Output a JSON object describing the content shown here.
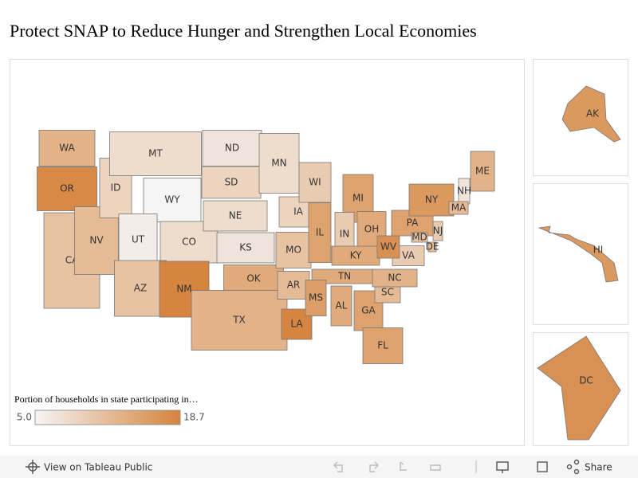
{
  "title": "Protect SNAP to Reduce Hunger and Strengthen Local Economies",
  "map": {
    "type": "choropleth",
    "color_low": "#f5f5f5",
    "color_high": "#d5833c",
    "states": [
      {
        "label": "WA",
        "value": 13
      },
      {
        "label": "OR",
        "value": 18
      },
      {
        "label": "CA",
        "value": 11
      },
      {
        "label": "NV",
        "value": 12
      },
      {
        "label": "ID",
        "value": 9
      },
      {
        "label": "MT",
        "value": 8
      },
      {
        "label": "WY",
        "value": 5
      },
      {
        "label": "UT",
        "value": 6
      },
      {
        "label": "CO",
        "value": 8
      },
      {
        "label": "AZ",
        "value": 11
      },
      {
        "label": "NM",
        "value": 18.5
      },
      {
        "label": "ND",
        "value": 7
      },
      {
        "label": "SD",
        "value": 9
      },
      {
        "label": "NE",
        "value": 8
      },
      {
        "label": "KS",
        "value": 7
      },
      {
        "label": "OK",
        "value": 14
      },
      {
        "label": "TX",
        "value": 13
      },
      {
        "label": "MN",
        "value": 8
      },
      {
        "label": "IA",
        "value": 9
      },
      {
        "label": "MO",
        "value": 11
      },
      {
        "label": "AR",
        "value": 12
      },
      {
        "label": "LA",
        "value": 18.5
      },
      {
        "label": "WI",
        "value": 10
      },
      {
        "label": "IL",
        "value": 15
      },
      {
        "label": "MI",
        "value": 15
      },
      {
        "label": "IN",
        "value": 10
      },
      {
        "label": "OH",
        "value": 14
      },
      {
        "label": "KY",
        "value": 14
      },
      {
        "label": "TN",
        "value": 14
      },
      {
        "label": "MS",
        "value": 15.5
      },
      {
        "label": "AL",
        "value": 14
      },
      {
        "label": "GA",
        "value": 15
      },
      {
        "label": "FL",
        "value": 15
      },
      {
        "label": "SC",
        "value": 12
      },
      {
        "label": "NC",
        "value": 13
      },
      {
        "label": "VA",
        "value": 10
      },
      {
        "label": "WV",
        "value": 17
      },
      {
        "label": "PA",
        "value": 15
      },
      {
        "label": "NY",
        "value": 16
      },
      {
        "label": "ME",
        "value": 13
      },
      {
        "label": "NH",
        "value": 7
      },
      {
        "label": "MA",
        "value": 12
      },
      {
        "label": "NJ",
        "value": 10
      },
      {
        "label": "DE",
        "value": 12
      },
      {
        "label": "MD",
        "value": 11
      },
      {
        "label": "AK",
        "value": 16
      },
      {
        "label": "HI",
        "value": 16
      },
      {
        "label": "DC",
        "value": 17
      }
    ],
    "legend": {
      "title": "Portion of households in state participating in…",
      "min": {
        "value": 5,
        "label": "5.0"
      },
      "max": 18.7
    }
  },
  "toolbar": {
    "view_link": "View on Tableau Public",
    "share": "Share"
  }
}
